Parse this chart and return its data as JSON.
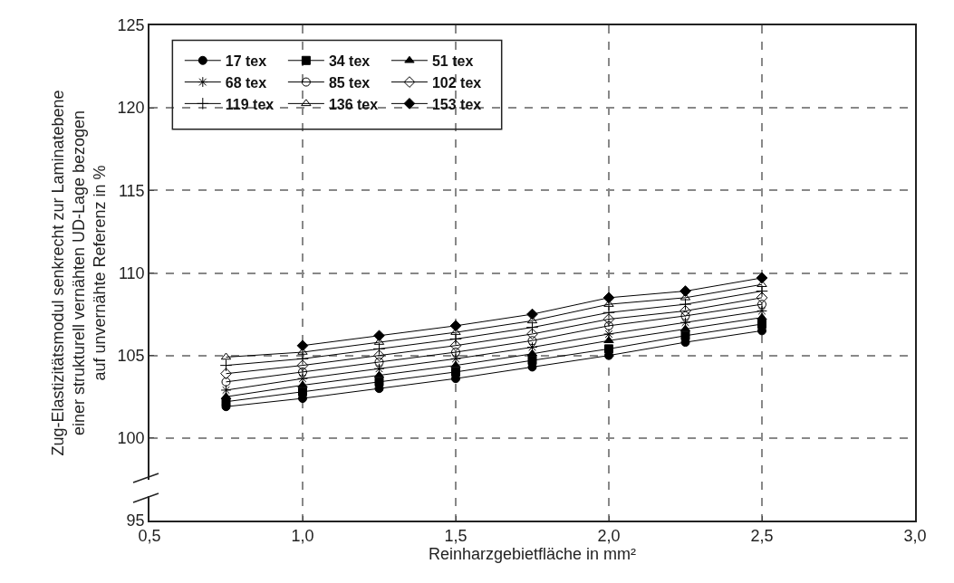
{
  "chart_data": {
    "type": "line",
    "xlabel": "Reinharzgebietfläche in mm²",
    "ylabel": "Zug-Elastizitätsmodul senkrecht zur Laminatebene\neiner strukturell vernähten UD-Lage bezogen\nauf unvernähte Referenz in %",
    "x": [
      0.75,
      1.0,
      1.25,
      1.5,
      1.75,
      2.0,
      2.25,
      2.5
    ],
    "xlim": [
      0.5,
      3.0
    ],
    "xticks": [
      {
        "value": 0.5,
        "label": "0,5"
      },
      {
        "value": 1.0,
        "label": "1,0"
      },
      {
        "value": 1.5,
        "label": "1,5"
      },
      {
        "value": 2.0,
        "label": "2,0"
      },
      {
        "value": 2.5,
        "label": "2,5"
      },
      {
        "value": 3.0,
        "label": "3,0"
      }
    ],
    "ylim": [
      95,
      125
    ],
    "yticks": [
      95,
      100,
      105,
      110,
      115,
      120,
      125
    ],
    "grid": true,
    "legend": "top left",
    "line_style": "solid",
    "series": [
      {
        "name": "17 tex",
        "color": "#000000",
        "marker": "circle",
        "values": [
          101.9,
          102.4,
          103.0,
          103.6,
          104.3,
          105.0,
          105.8,
          106.5
        ]
      },
      {
        "name": "34 tex",
        "color": "#000000",
        "marker": "square",
        "values": [
          102.2,
          102.8,
          103.4,
          104.0,
          104.7,
          105.4,
          106.2,
          106.9
        ]
      },
      {
        "name": "51 tex",
        "color": "#000000",
        "marker": "triangle",
        "values": [
          102.5,
          103.2,
          103.8,
          104.4,
          105.1,
          105.9,
          106.6,
          107.3
        ]
      },
      {
        "name": "68 tex",
        "color": "#000000",
        "marker": "cross",
        "values": [
          102.9,
          103.6,
          104.2,
          104.8,
          105.5,
          106.3,
          107.0,
          107.7
        ]
      },
      {
        "name": "85 tex",
        "color": "#000000",
        "marker": "circle-open",
        "values": [
          103.4,
          104.0,
          104.6,
          105.2,
          105.9,
          106.8,
          107.4,
          108.1
        ]
      },
      {
        "name": "102 tex",
        "color": "#000000",
        "marker": "diamond-open",
        "values": [
          103.9,
          104.4,
          105.0,
          105.6,
          106.3,
          107.2,
          107.7,
          108.5
        ]
      },
      {
        "name": "119 tex",
        "color": "#000000",
        "marker": "plus",
        "values": [
          104.4,
          104.8,
          105.4,
          106.0,
          106.7,
          107.6,
          108.1,
          108.9
        ]
      },
      {
        "name": "136 tex",
        "color": "#000000",
        "marker": "triangle-open",
        "values": [
          104.9,
          105.2,
          105.8,
          106.4,
          107.1,
          108.1,
          108.5,
          109.3
        ]
      },
      {
        "name": "153 tex",
        "color": "#000000",
        "marker": "diamond",
        "values": [
          null,
          105.6,
          106.2,
          106.8,
          107.5,
          108.5,
          108.9,
          109.7
        ]
      }
    ]
  }
}
